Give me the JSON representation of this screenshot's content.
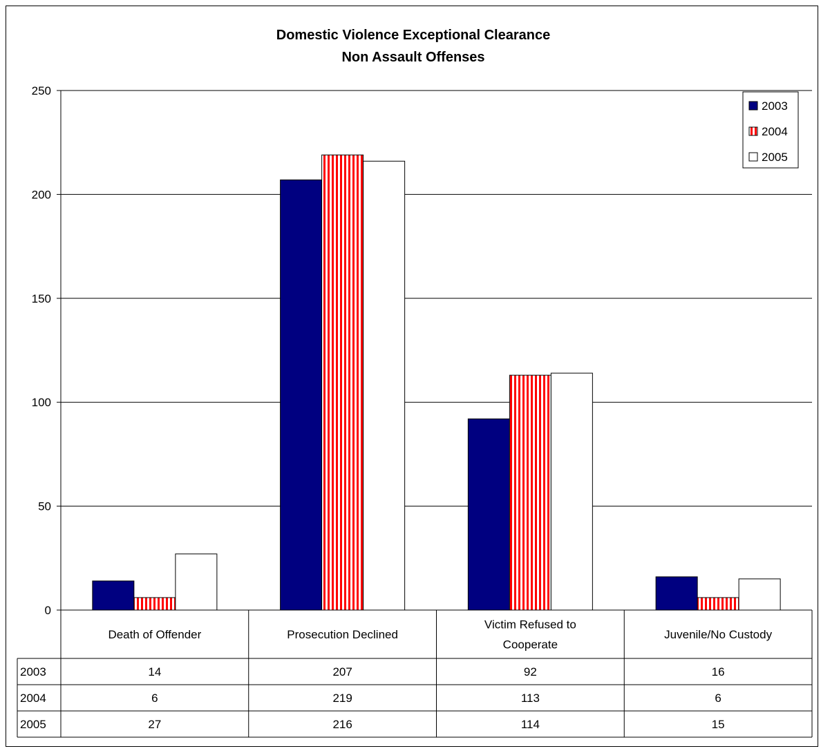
{
  "chart_data": {
    "type": "bar",
    "title": "Domestic Violence Exceptional Clearance",
    "subtitle": "Non Assault Offenses",
    "categories": [
      [
        "Death of Offender"
      ],
      [
        "Prosecution Declined"
      ],
      [
        "Victim Refused to",
        "Cooperate"
      ],
      [
        "Juvenile/No Custody"
      ]
    ],
    "series": [
      {
        "name": "2003",
        "values": [
          14,
          207,
          92,
          16
        ],
        "color": "#000080",
        "pattern": "solid"
      },
      {
        "name": "2004",
        "values": [
          6,
          219,
          113,
          6
        ],
        "color": "#ff0000",
        "pattern": "vertical-stripes"
      },
      {
        "name": "2005",
        "values": [
          27,
          216,
          114,
          15
        ],
        "color": "#ffffff",
        "pattern": "solid"
      }
    ],
    "ylim": [
      0,
      250
    ],
    "yticks": [
      "0",
      "50",
      "100",
      "150",
      "200",
      "250"
    ],
    "grid": true,
    "legend": "top-right",
    "data_table": true
  }
}
